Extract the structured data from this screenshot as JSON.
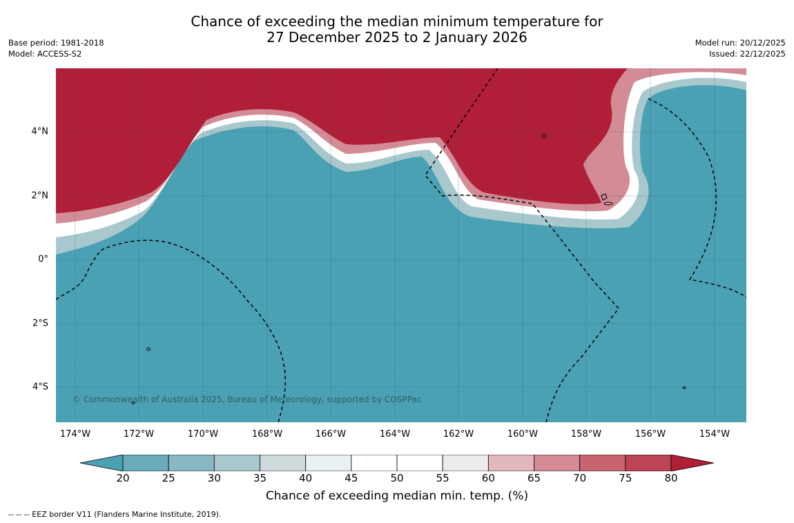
{
  "title": {
    "line1": "Chance of exceeding the median minimum temperature for",
    "line2": "27 December 2025 to 2 January 2026"
  },
  "meta_left": {
    "base_period": "Base period: 1981-2018",
    "model": "Model: ACCESS-S2"
  },
  "meta_right": {
    "model_run": "Model run: 20/12/2025",
    "issued": "Issued: 22/12/2025"
  },
  "map": {
    "copyright": "© Commonwealth of Australia 2025, Bureau of Meteorology, supported by COSPPac",
    "lat_labels": [
      "4°N",
      "2°N",
      "0°",
      "2°S",
      "4°S"
    ],
    "lon_labels": [
      "174°W",
      "172°W",
      "170°W",
      "168°W",
      "166°W",
      "164°W",
      "162°W",
      "160°W",
      "158°W",
      "156°W",
      "154°W"
    ],
    "lat_values": [
      4,
      2,
      0,
      -2,
      -4
    ],
    "lon_values": [
      -174,
      -172,
      -170,
      -168,
      -166,
      -164,
      -162,
      -160,
      -158,
      -156,
      -154
    ],
    "colors": {
      "warm": "#b11e38",
      "cool": "#4aa1b3"
    }
  },
  "colorbar": {
    "title": "Chance of exceeding median min. temp. (%)",
    "ticks": [
      "20",
      "25",
      "30",
      "35",
      "40",
      "45",
      "50",
      "55",
      "60",
      "65",
      "70",
      "75",
      "80"
    ],
    "low_extend_color": "#4aa1b3",
    "high_extend_color": "#b11e38",
    "bins": [
      "#6aaab9",
      "#88b8c4",
      "#a9c8cd",
      "#cfdbdd",
      "#eaf1f2",
      "#ffffff",
      "#ffffff",
      "#ececed",
      "#e2b7bd",
      "#d38b96",
      "#c8636f",
      "#bc4456"
    ]
  },
  "footer": "--  --  -- EEZ border V11 (Flanders Marine Institute, 2019)."
}
